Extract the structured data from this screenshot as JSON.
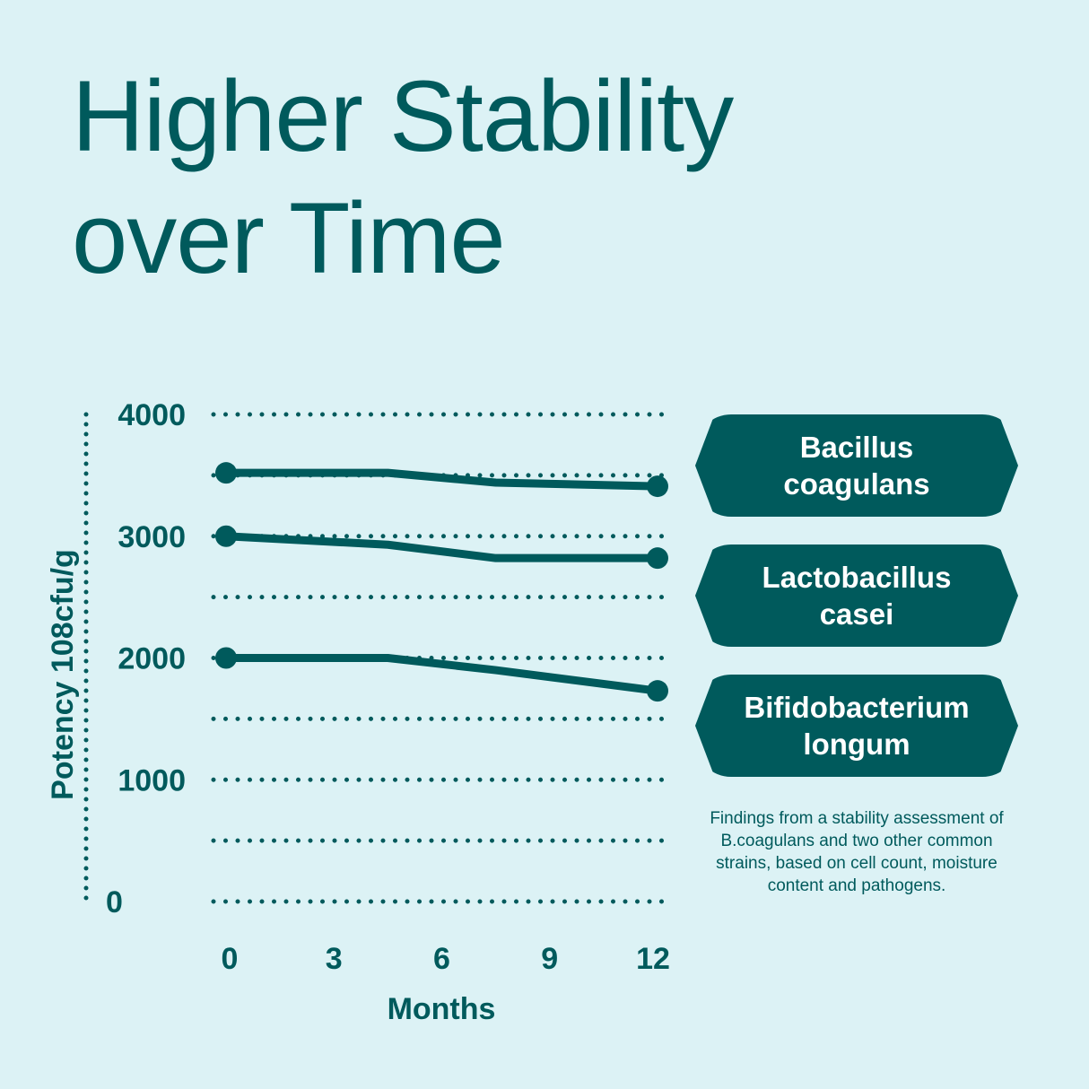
{
  "title": {
    "line1": "Higher Stability",
    "line2": "over Time"
  },
  "colors": {
    "background": "#dcf2f5",
    "accent": "#005a5c",
    "pill_text": "#ffffff"
  },
  "chart_data": {
    "type": "line",
    "ylabel": "Potency 108cfu/g",
    "xlabel": "Months",
    "x": [
      0,
      4.5,
      7.5,
      12
    ],
    "xticks": [
      "0",
      "3",
      "6",
      "9",
      "12"
    ],
    "xtick_values": [
      0,
      3,
      6,
      9,
      12
    ],
    "yticks": [
      "4000",
      "3000",
      "2000",
      "1000",
      "0"
    ],
    "ytick_values": [
      4000,
      3000,
      2000,
      1000,
      0
    ],
    "ylim": [
      0,
      4000
    ],
    "xlim": [
      0,
      12
    ],
    "grid_values": [
      0,
      500,
      1000,
      1500,
      2000,
      2500,
      3000,
      3500,
      4000
    ],
    "series": [
      {
        "name": "Bacillus coagulans",
        "values": [
          3520,
          3520,
          3440,
          3410
        ]
      },
      {
        "name": "Lactobacillus casei",
        "values": [
          3000,
          2930,
          2820,
          2820
        ]
      },
      {
        "name": "Bifidobacterium longum",
        "values": [
          2000,
          2000,
          1900,
          1730
        ]
      }
    ]
  },
  "legend": [
    {
      "line1": "Bacillus",
      "line2": "coagulans"
    },
    {
      "line1": "Lactobacillus",
      "line2": "casei"
    },
    {
      "line1": "Bifidobacterium",
      "line2": "longum"
    }
  ],
  "footnote": "Findings from a stability assessment of B.coagulans and two other common strains, based on cell count, moisture content and pathogens."
}
